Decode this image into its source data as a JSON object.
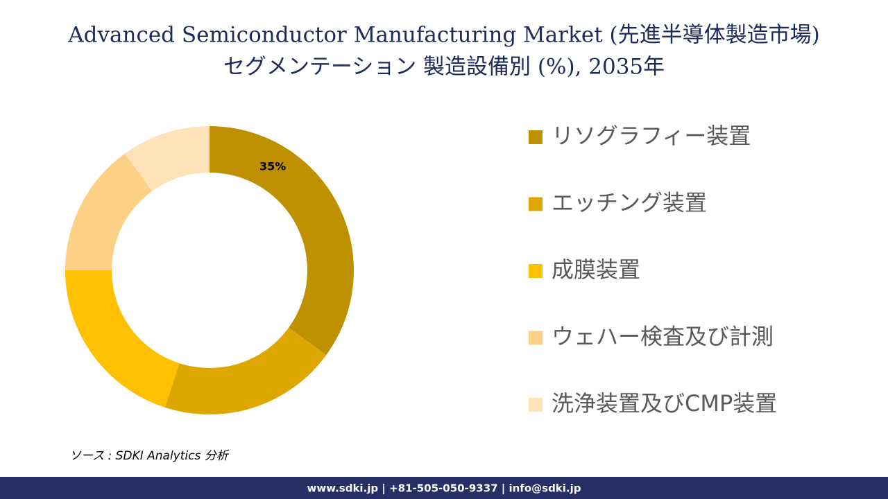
{
  "chart_data": {
    "type": "donut",
    "title": [
      "Advanced Semiconductor Manufacturing Market (先進半導体製造市場)",
      "セグメンテーション 製造設備別 (%), 2035年"
    ],
    "categories": [
      "リソグラフィー装置",
      "エッチング装置",
      "成膜装置",
      "ウェハー検査及び計測",
      "洗浄装置及びCMP装置"
    ],
    "values": [
      35,
      20,
      20,
      15,
      10
    ],
    "value_labels": [
      "35%",
      null,
      null,
      null,
      null
    ],
    "colors": [
      "#bf9000",
      "#dea700",
      "#ffc000",
      "#fdd086",
      "#ffe2b8"
    ],
    "legend": "right",
    "source": "ソース : SDKI Analytics 分析",
    "footer": "www.sdki.jp | +81-505-050-9337 | info@sdki.jp"
  }
}
